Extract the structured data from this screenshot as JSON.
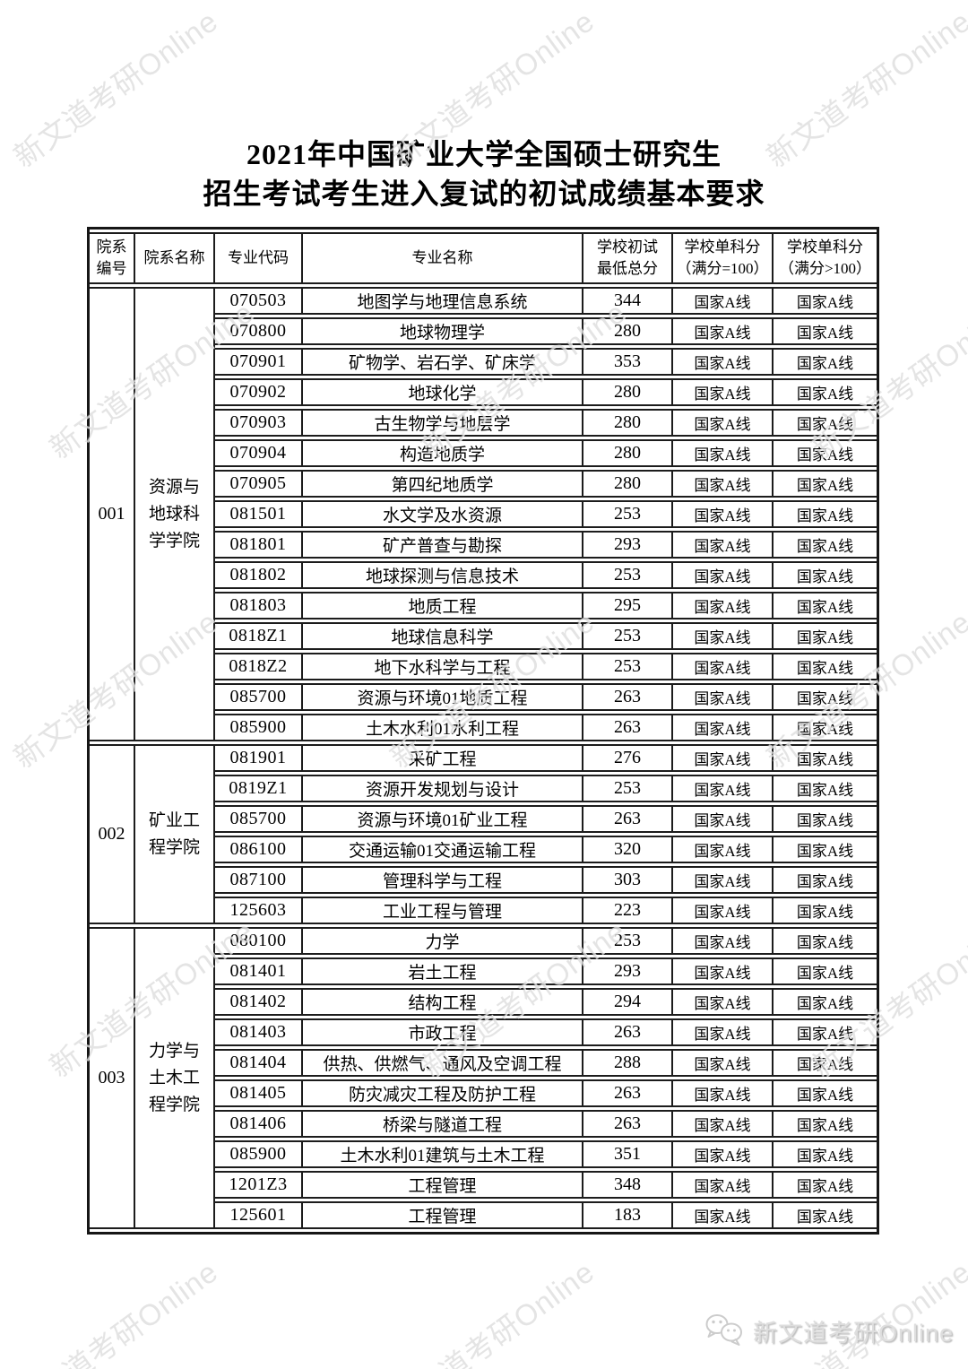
{
  "page": {
    "title_line1": "2021年中国矿业大学全国硕士研究生",
    "title_line2": "招生考试考生进入复试的初试成绩基本要求"
  },
  "watermark": {
    "text": "新文道考研Online"
  },
  "footer": {
    "brand": "新文道考研Online",
    "icon": "wechat-icon"
  },
  "table": {
    "headers": [
      "院系\n编号",
      "院系名称",
      "专业代码",
      "专业名称",
      "学校初试\n最低总分",
      "学校单科分\n（满分=100）",
      "学校单科分\n（满分>100）"
    ],
    "departments": [
      {
        "no": "001",
        "name": "资源与\n地球科\n学学院",
        "rows": [
          {
            "code": "070503",
            "major": "地图学与地理信息系统",
            "min_total": "344",
            "single_eq100": "国家A线",
            "single_gt100": "国家A线"
          },
          {
            "code": "070800",
            "major": "地球物理学",
            "min_total": "280",
            "single_eq100": "国家A线",
            "single_gt100": "国家A线"
          },
          {
            "code": "070901",
            "major": "矿物学、岩石学、矿床学",
            "min_total": "353",
            "single_eq100": "国家A线",
            "single_gt100": "国家A线"
          },
          {
            "code": "070902",
            "major": "地球化学",
            "min_total": "280",
            "single_eq100": "国家A线",
            "single_gt100": "国家A线"
          },
          {
            "code": "070903",
            "major": "古生物学与地层学",
            "min_total": "280",
            "single_eq100": "国家A线",
            "single_gt100": "国家A线"
          },
          {
            "code": "070904",
            "major": "构造地质学",
            "min_total": "280",
            "single_eq100": "国家A线",
            "single_gt100": "国家A线"
          },
          {
            "code": "070905",
            "major": "第四纪地质学",
            "min_total": "280",
            "single_eq100": "国家A线",
            "single_gt100": "国家A线"
          },
          {
            "code": "081501",
            "major": "水文学及水资源",
            "min_total": "253",
            "single_eq100": "国家A线",
            "single_gt100": "国家A线"
          },
          {
            "code": "081801",
            "major": "矿产普查与勘探",
            "min_total": "293",
            "single_eq100": "国家A线",
            "single_gt100": "国家A线"
          },
          {
            "code": "081802",
            "major": "地球探测与信息技术",
            "min_total": "253",
            "single_eq100": "国家A线",
            "single_gt100": "国家A线"
          },
          {
            "code": "081803",
            "major": "地质工程",
            "min_total": "295",
            "single_eq100": "国家A线",
            "single_gt100": "国家A线"
          },
          {
            "code": "0818Z1",
            "major": "地球信息科学",
            "min_total": "253",
            "single_eq100": "国家A线",
            "single_gt100": "国家A线"
          },
          {
            "code": "0818Z2",
            "major": "地下水科学与工程",
            "min_total": "253",
            "single_eq100": "国家A线",
            "single_gt100": "国家A线"
          },
          {
            "code": "085700",
            "major": "资源与环境01地质工程",
            "min_total": "263",
            "single_eq100": "国家A线",
            "single_gt100": "国家A线"
          },
          {
            "code": "085900",
            "major": "土木水利01水利工程",
            "min_total": "263",
            "single_eq100": "国家A线",
            "single_gt100": "国家A线"
          }
        ]
      },
      {
        "no": "002",
        "name": "矿业工\n程学院",
        "rows": [
          {
            "code": "081901",
            "major": "采矿工程",
            "min_total": "276",
            "single_eq100": "国家A线",
            "single_gt100": "国家A线"
          },
          {
            "code": "0819Z1",
            "major": "资源开发规划与设计",
            "min_total": "253",
            "single_eq100": "国家A线",
            "single_gt100": "国家A线"
          },
          {
            "code": "085700",
            "major": "资源与环境01矿业工程",
            "min_total": "263",
            "single_eq100": "国家A线",
            "single_gt100": "国家A线"
          },
          {
            "code": "086100",
            "major": "交通运输01交通运输工程",
            "min_total": "320",
            "single_eq100": "国家A线",
            "single_gt100": "国家A线"
          },
          {
            "code": "087100",
            "major": "管理科学与工程",
            "min_total": "303",
            "single_eq100": "国家A线",
            "single_gt100": "国家A线"
          },
          {
            "code": "125603",
            "major": "工业工程与管理",
            "min_total": "223",
            "single_eq100": "国家A线",
            "single_gt100": "国家A线"
          }
        ]
      },
      {
        "no": "003",
        "name": "力学与\n土木工\n程学院",
        "rows": [
          {
            "code": "080100",
            "major": "力学",
            "min_total": "253",
            "single_eq100": "国家A线",
            "single_gt100": "国家A线"
          },
          {
            "code": "081401",
            "major": "岩土工程",
            "min_total": "293",
            "single_eq100": "国家A线",
            "single_gt100": "国家A线"
          },
          {
            "code": "081402",
            "major": "结构工程",
            "min_total": "294",
            "single_eq100": "国家A线",
            "single_gt100": "国家A线"
          },
          {
            "code": "081403",
            "major": "市政工程",
            "min_total": "263",
            "single_eq100": "国家A线",
            "single_gt100": "国家A线"
          },
          {
            "code": "081404",
            "major": "供热、供燃气、通风及空调工程",
            "min_total": "288",
            "single_eq100": "国家A线",
            "single_gt100": "国家A线"
          },
          {
            "code": "081405",
            "major": "防灾减灾工程及防护工程",
            "min_total": "263",
            "single_eq100": "国家A线",
            "single_gt100": "国家A线"
          },
          {
            "code": "081406",
            "major": "桥梁与隧道工程",
            "min_total": "263",
            "single_eq100": "国家A线",
            "single_gt100": "国家A线"
          },
          {
            "code": "085900",
            "major": "土木水利01建筑与土木工程",
            "min_total": "351",
            "single_eq100": "国家A线",
            "single_gt100": "国家A线"
          },
          {
            "code": "1201Z3",
            "major": "工程管理",
            "min_total": "348",
            "single_eq100": "国家A线",
            "single_gt100": "国家A线"
          },
          {
            "code": "125601",
            "major": "工程管理",
            "min_total": "183",
            "single_eq100": "国家A线",
            "single_gt100": "国家A线"
          }
        ]
      }
    ]
  }
}
